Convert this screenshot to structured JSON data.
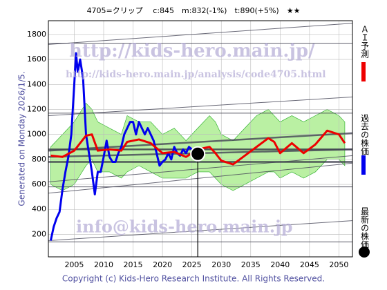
{
  "chart_data": {
    "type": "line",
    "title": "4705=クリップ　 c:845　m:832(-1%)　t:890(+5%)　★★",
    "generated": "Generated on Monday 2026/1/5.",
    "copyright": "Copyright (c) Kids-Hero Research Institute. All Rights Reserved.",
    "watermarks": [
      "http://kids-hero.main.jp/",
      "http://kids-hero.main.jp/analysis/code4705.html",
      "info@kids-hero.main.jp"
    ],
    "xlim": [
      2000.6,
      2052.3
    ],
    "xticks": [
      2005,
      2010,
      2015,
      2020,
      2025,
      2030,
      2035,
      2040,
      2045,
      2050
    ],
    "ylim": [
      20,
      1910
    ],
    "yticks": [
      200,
      400,
      600,
      800,
      1000,
      1200,
      1400,
      1600,
      1800
    ],
    "grid": true,
    "series": [
      {
        "name": "過去の株価",
        "color": "#0000ee",
        "x": [
          2001.0,
          2001.5,
          2002,
          2002.5,
          2003,
          2003.5,
          2004,
          2004.5,
          2005,
          2005.3,
          2005.6,
          2006,
          2006.5,
          2007,
          2007.5,
          2008,
          2008.5,
          2009,
          2009.5,
          2010,
          2010.5,
          2011,
          2011.5,
          2012,
          2012.5,
          2013,
          2013.5,
          2014,
          2014.5,
          2015,
          2015.5,
          2016,
          2016.5,
          2017,
          2017.5,
          2018,
          2018.5,
          2019,
          2019.5,
          2020,
          2020.5,
          2021,
          2021.5,
          2022,
          2022.5,
          2023,
          2023.5,
          2024,
          2024.5,
          2025,
          2025.5
        ],
        "values": [
          150,
          260,
          330,
          380,
          560,
          700,
          820,
          1000,
          1400,
          1650,
          1500,
          1600,
          1450,
          1000,
          850,
          700,
          520,
          700,
          700,
          820,
          950,
          820,
          780,
          780,
          850,
          900,
          1000,
          1050,
          1100,
          1100,
          1000,
          1100,
          1050,
          1000,
          1050,
          1000,
          950,
          850,
          750,
          780,
          800,
          850,
          800,
          900,
          850,
          830,
          880,
          850,
          900,
          880,
          845
        ]
      },
      {
        "name": "ＡＩ予測",
        "color": "#ee0000",
        "x": [
          2001,
          2003,
          2005,
          2007,
          2008,
          2009,
          2011,
          2013,
          2014,
          2016,
          2018,
          2020,
          2022,
          2024,
          2026,
          2028,
          2029,
          2030,
          2032,
          2034,
          2036,
          2038,
          2039,
          2040,
          2042,
          2044,
          2046,
          2048,
          2050,
          2051
        ],
        "values": [
          830,
          820,
          870,
          990,
          1000,
          870,
          880,
          870,
          940,
          960,
          930,
          850,
          860,
          820,
          880,
          900,
          850,
          790,
          760,
          830,
          900,
          970,
          940,
          850,
          930,
          850,
          920,
          1030,
          1000,
          930
        ]
      }
    ],
    "band": {
      "color": "#66dd33",
      "upper": [
        900,
        1000,
        1100,
        1250,
        1200,
        1100,
        1050,
        1000,
        1150,
        1100,
        1100,
        1000,
        1050,
        950,
        1050,
        1150,
        1100,
        1000,
        950,
        1050,
        1150,
        1200,
        1150,
        1100,
        1150,
        1100,
        1150,
        1200,
        1150,
        1100
      ],
      "lower": [
        600,
        550,
        600,
        750,
        800,
        700,
        700,
        650,
        700,
        750,
        700,
        650,
        650,
        650,
        700,
        700,
        650,
        600,
        550,
        600,
        650,
        700,
        700,
        650,
        700,
        650,
        700,
        800,
        800,
        750
      ]
    },
    "latest": {
      "name": "最新の株価",
      "x": 2026,
      "value": 845,
      "color": "#000000"
    },
    "levels": [
      1730,
      1170,
      880,
      780,
      580,
      140
    ],
    "trend_x": [
      2000.6,
      2052.3
    ],
    "trends": [
      [
        1720,
        1890
      ],
      [
        1150,
        1300
      ],
      [
        870,
        1010
      ],
      [
        820,
        880
      ],
      [
        530,
        770
      ],
      [
        150,
        310
      ],
      [
        620,
        830
      ]
    ]
  }
}
